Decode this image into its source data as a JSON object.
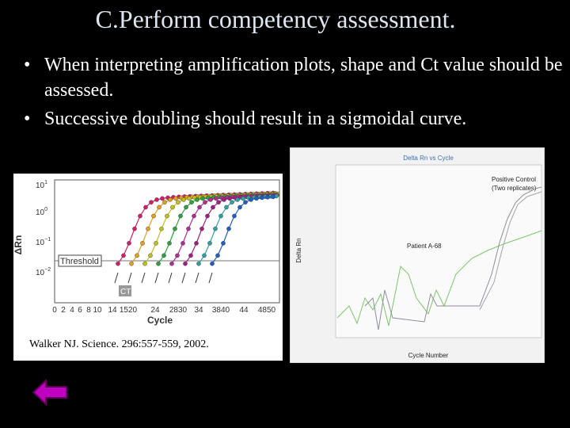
{
  "title": "C.Perform competency assessment.",
  "bullets": [
    "When interpreting amplification plots, shape and Ct value should be assessed.",
    "Successive doubling should result in a sigmoidal curve."
  ],
  "citation": "Walker NJ. Science. 296:557-559, 2002.",
  "left_figure": {
    "x_label": "Cycle",
    "y_label": "ΔRn",
    "threshold_label": "Threshold",
    "ct_label": "CT",
    "x_tick_labels": [
      "0",
      "2",
      "4",
      "6",
      "8",
      "10",
      "14",
      "1520",
      "24",
      "2830",
      "34",
      "3840",
      "44",
      "4850"
    ],
    "y_tick_labels": [
      {
        "base": "10",
        "exp": "1"
      },
      {
        "base": "10",
        "exp": "0"
      },
      {
        "base": "10",
        "exp": "−1"
      },
      {
        "base": "10",
        "exp": "−2"
      }
    ]
  },
  "right_figure": {
    "title": "Delta Rn vs Cycle",
    "annotations": [
      "Positive Control",
      "(Two replicates)",
      "Patient A-68"
    ],
    "y_label": "Delta Rn",
    "x_label": "Cycle Number"
  }
}
